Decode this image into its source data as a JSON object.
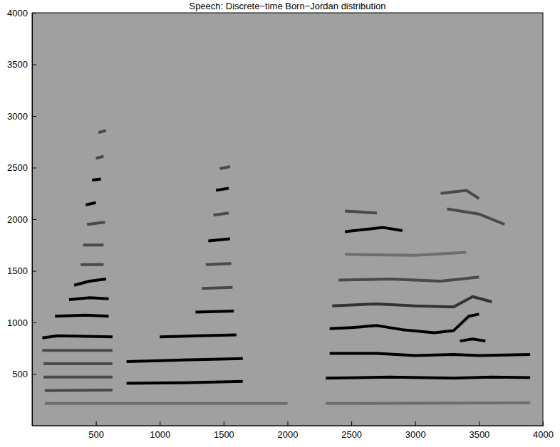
{
  "chart_data": {
    "type": "line",
    "title": "Speech: Discrete−time Born−Jordan distribution",
    "xlim": [
      0,
      4000
    ],
    "ylim": [
      0,
      4000
    ],
    "xticks": [
      500,
      1000,
      1500,
      2000,
      2500,
      3000,
      3500,
      4000
    ],
    "yticks": [
      500,
      1000,
      1500,
      2000,
      2500,
      3000,
      3500,
      4000
    ],
    "series": [
      {
        "color": "#4a4a4a",
        "x": [
          100,
          630
        ],
        "values": [
          340,
          345
        ]
      },
      {
        "color": "#4a4a4a",
        "x": [
          90,
          630
        ],
        "values": [
          470,
          470
        ]
      },
      {
        "color": "#4a4a4a",
        "x": [
          90,
          630
        ],
        "values": [
          600,
          600
        ]
      },
      {
        "color": "#4a4a4a",
        "x": [
          80,
          630
        ],
        "values": [
          730,
          730
        ]
      },
      {
        "color": "#000000",
        "x": [
          80,
          200,
          630
        ],
        "values": [
          850,
          870,
          860
        ]
      },
      {
        "color": "#000000",
        "x": [
          180,
          420,
          600
        ],
        "values": [
          1060,
          1070,
          1060
        ]
      },
      {
        "color": "#000000",
        "x": [
          290,
          450,
          600
        ],
        "values": [
          1220,
          1240,
          1230
        ]
      },
      {
        "color": "#000000",
        "x": [
          330,
          450,
          580
        ],
        "values": [
          1360,
          1400,
          1420
        ]
      },
      {
        "color": "#4a4a4a",
        "x": [
          380,
          560
        ],
        "values": [
          1560,
          1560
        ]
      },
      {
        "color": "#4a4a4a",
        "x": [
          400,
          560
        ],
        "values": [
          1750,
          1750
        ]
      },
      {
        "color": "#4a4a4a",
        "x": [
          430,
          570
        ],
        "values": [
          1950,
          1970
        ]
      },
      {
        "color": "#000000",
        "x": [
          420,
          500
        ],
        "values": [
          2140,
          2160
        ]
      },
      {
        "color": "#000000",
        "x": [
          470,
          540
        ],
        "values": [
          2380,
          2390
        ]
      },
      {
        "color": "#4a4a4a",
        "x": [
          500,
          560
        ],
        "values": [
          2590,
          2610
        ]
      },
      {
        "color": "#4a4a4a",
        "x": [
          520,
          580
        ],
        "values": [
          2840,
          2860
        ]
      },
      {
        "color": "#6e6e6e",
        "x": [
          100,
          2000
        ],
        "values": [
          215,
          215
        ]
      },
      {
        "color": "#000000",
        "x": [
          740,
          1200,
          1650
        ],
        "values": [
          410,
          415,
          430
        ]
      },
      {
        "color": "#000000",
        "x": [
          740,
          1000,
          1300,
          1650
        ],
        "values": [
          620,
          630,
          640,
          650
        ]
      },
      {
        "color": "#000000",
        "x": [
          1000,
          1300,
          1600
        ],
        "values": [
          860,
          870,
          880
        ]
      },
      {
        "color": "#000000",
        "x": [
          1280,
          1580
        ],
        "values": [
          1100,
          1110
        ]
      },
      {
        "color": "#4a4a4a",
        "x": [
          1330,
          1570
        ],
        "values": [
          1330,
          1340
        ]
      },
      {
        "color": "#4a4a4a",
        "x": [
          1360,
          1560
        ],
        "values": [
          1560,
          1570
        ]
      },
      {
        "color": "#000000",
        "x": [
          1380,
          1550
        ],
        "values": [
          1790,
          1810
        ]
      },
      {
        "color": "#4a4a4a",
        "x": [
          1420,
          1540
        ],
        "values": [
          2040,
          2060
        ]
      },
      {
        "color": "#000000",
        "x": [
          1440,
          1540
        ],
        "values": [
          2280,
          2300
        ]
      },
      {
        "color": "#4a4a4a",
        "x": [
          1470,
          1550
        ],
        "values": [
          2490,
          2510
        ]
      },
      {
        "color": "#6e6e6e",
        "x": [
          2300,
          3900
        ],
        "values": [
          215,
          220
        ]
      },
      {
        "color": "#000000",
        "x": [
          2300,
          2800,
          3300,
          3600,
          3900
        ],
        "values": [
          460,
          470,
          460,
          470,
          465
        ]
      },
      {
        "color": "#000000",
        "x": [
          2330,
          2700,
          3000,
          3300,
          3500,
          3900
        ],
        "values": [
          700,
          700,
          680,
          690,
          680,
          690
        ]
      },
      {
        "color": "#000000",
        "x": [
          2330,
          2500,
          2700,
          2900,
          3150,
          3300,
          3420,
          3500
        ],
        "values": [
          940,
          950,
          970,
          930,
          900,
          920,
          1060,
          1080
        ]
      },
      {
        "color": "#000000",
        "x": [
          3350,
          3450,
          3550
        ],
        "values": [
          820,
          840,
          820
        ]
      },
      {
        "color": "#333333",
        "x": [
          2350,
          2700,
          3000,
          3300,
          3450,
          3600
        ],
        "values": [
          1160,
          1180,
          1160,
          1150,
          1250,
          1200
        ]
      },
      {
        "color": "#4a4a4a",
        "x": [
          2400,
          2800,
          3200,
          3500
        ],
        "values": [
          1410,
          1420,
          1400,
          1440
        ]
      },
      {
        "color": "#6e6e6e",
        "x": [
          2450,
          3000,
          3400
        ],
        "values": [
          1660,
          1650,
          1680
        ]
      },
      {
        "color": "#000000",
        "x": [
          2450,
          2600,
          2750,
          2900
        ],
        "values": [
          1880,
          1900,
          1920,
          1890
        ]
      },
      {
        "color": "#4a4a4a",
        "x": [
          2450,
          2700
        ],
        "values": [
          2080,
          2060
        ]
      },
      {
        "color": "#4a4a4a",
        "x": [
          3250,
          3500,
          3700
        ],
        "values": [
          2100,
          2050,
          1950
        ]
      },
      {
        "color": "#4a4a4a",
        "x": [
          3200,
          3400,
          3500
        ],
        "values": [
          2250,
          2280,
          2200
        ]
      }
    ]
  }
}
